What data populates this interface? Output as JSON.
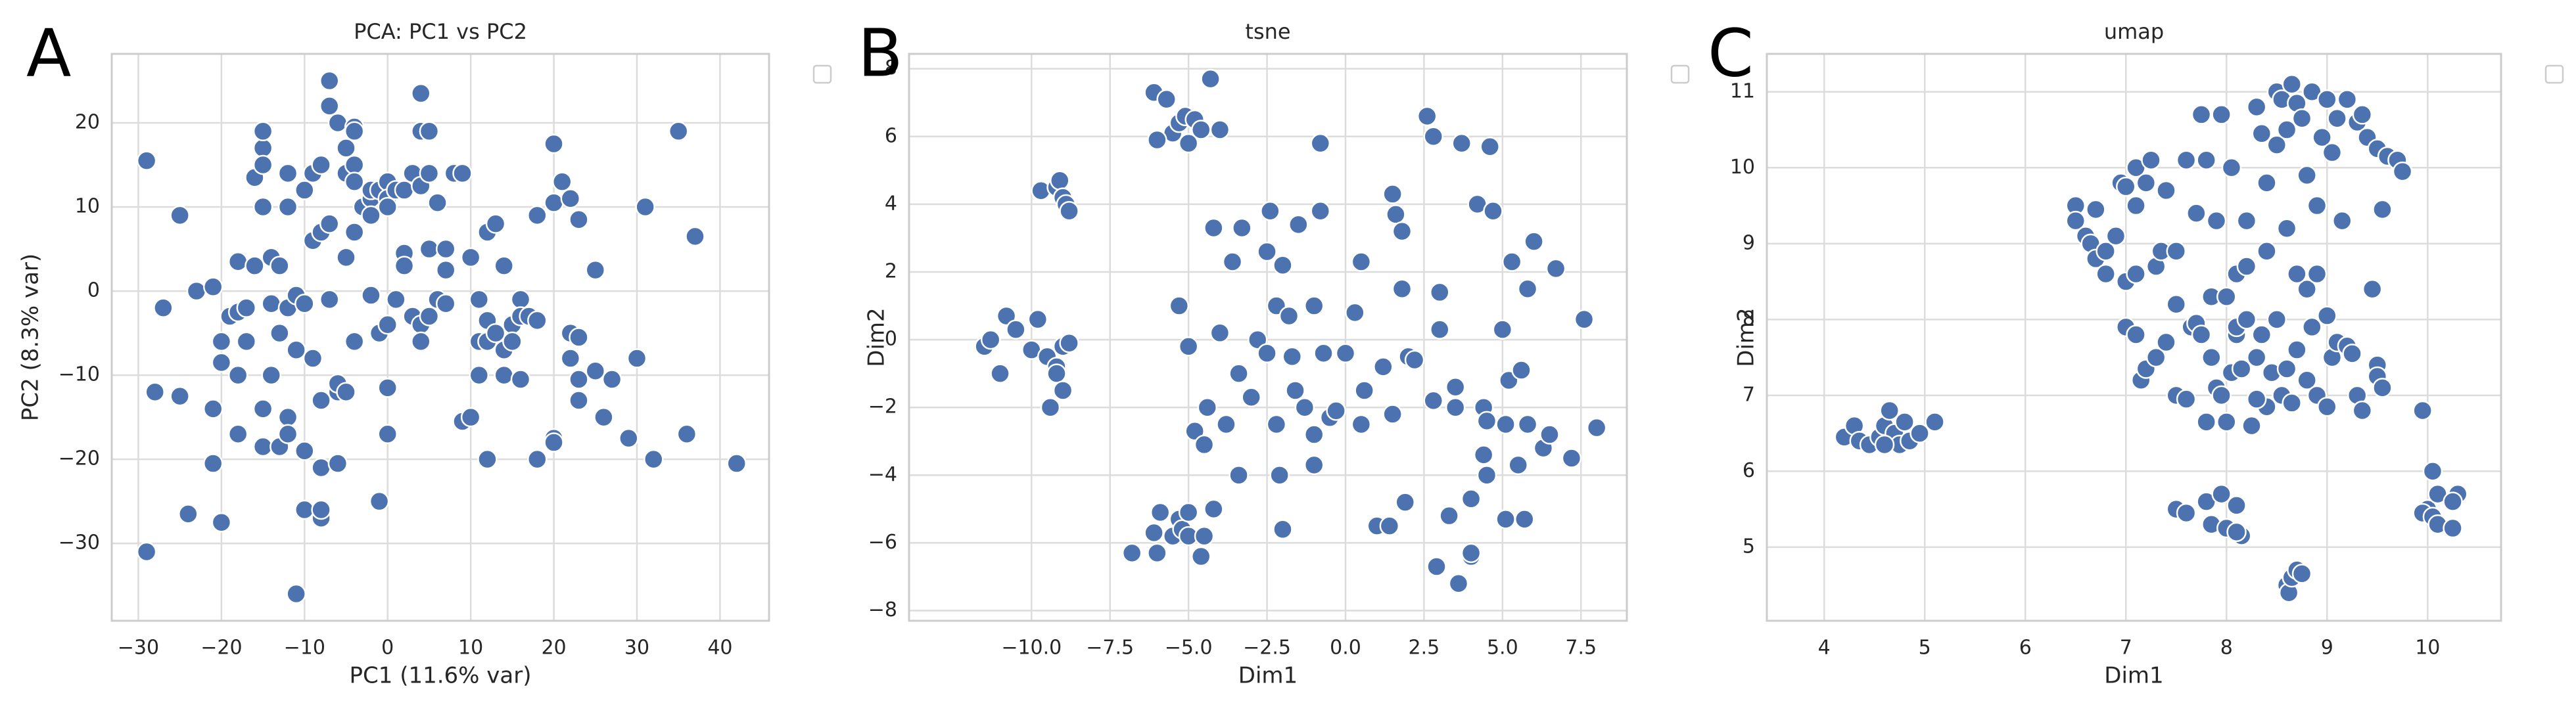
{
  "chart_data": [
    {
      "type": "scatter",
      "panel": "A",
      "title": "PCA: PC1 vs PC2",
      "xlabel": "PC1 (11.6% var)",
      "ylabel": "PC2 (8.3% var)",
      "color": "#4c72b0",
      "grid": true,
      "xlim": [
        -33.2,
        45.9
      ],
      "ylim": [
        -39.2,
        28.2
      ],
      "xticks": [
        {
          "value": -30,
          "label": "−30"
        },
        {
          "value": -20,
          "label": "−20"
        },
        {
          "value": -10,
          "label": "−10"
        },
        0,
        10,
        20,
        30,
        40
      ],
      "yticks": [
        {
          "value": -30,
          "label": "−30"
        },
        {
          "value": -20,
          "label": "−20"
        },
        {
          "value": -10,
          "label": "−10"
        },
        0,
        10,
        20
      ],
      "x": [
        -29,
        -29,
        -28,
        -27,
        -25,
        -25,
        -24,
        -23,
        -21,
        -21,
        -21,
        -20,
        -20,
        -20,
        -19,
        -18,
        -18,
        -18,
        -18,
        -17,
        -17,
        -16,
        -16,
        -15,
        -15,
        -15,
        -15,
        -15,
        -15,
        -14,
        -14,
        -14,
        -13,
        -13,
        -13,
        -12,
        -12,
        -12,
        -12,
        -12,
        -11,
        -11,
        -11,
        -10,
        -10,
        -10,
        -10,
        -9,
        -9,
        -9,
        -8,
        -8,
        -8,
        -8,
        -8,
        -8,
        -7,
        -7,
        -7,
        -7,
        -6,
        -6,
        -6,
        -6,
        -5,
        -5,
        -5,
        -5,
        -4,
        -4,
        -4,
        -4,
        -4,
        -4,
        -3,
        -2,
        -2,
        -2,
        -2,
        -1,
        -1,
        -1,
        0,
        0,
        0,
        0,
        0,
        0,
        1,
        1,
        2,
        2,
        2,
        3,
        3,
        4,
        4,
        4,
        4,
        4,
        5,
        5,
        5,
        5,
        6,
        6,
        7,
        7,
        7,
        8,
        9,
        9,
        10,
        10,
        11,
        11,
        11,
        12,
        12,
        12,
        12,
        13,
        13,
        14,
        14,
        14,
        15,
        15,
        16,
        16,
        16,
        17,
        18,
        18,
        18,
        20,
        20,
        20,
        20,
        21,
        22,
        22,
        22,
        23,
        23,
        23,
        23,
        25,
        25,
        26,
        27,
        29,
        30,
        31,
        32,
        35,
        36,
        37,
        42
      ],
      "values": [
        15.5,
        -31,
        -12,
        -2,
        9,
        -12.5,
        -26.5,
        0,
        0.5,
        -14,
        -20.5,
        -6,
        -8.5,
        -27.5,
        -3,
        3.5,
        -2.5,
        -10,
        -17,
        -2,
        -6,
        3,
        13.5,
        17,
        19,
        15,
        10,
        -14,
        -18.5,
        4,
        -1.5,
        -10,
        -5,
        3,
        -18.5,
        -15,
        -17,
        14,
        10,
        -2,
        -0.5,
        -7,
        -36,
        -26,
        -1.5,
        -19,
        12,
        14,
        6,
        -8,
        -27,
        -26,
        -21,
        -13,
        7,
        15,
        25,
        22,
        8,
        -1,
        20,
        -12,
        -11,
        -20.5,
        17,
        14,
        4,
        -12,
        19.5,
        19,
        15,
        13,
        7,
        -6,
        10,
        11,
        12,
        9,
        -0.5,
        12,
        -25,
        -5,
        -4,
        -11.5,
        -17,
        13,
        11,
        10,
        12,
        -1,
        12,
        4.5,
        3,
        14,
        -3,
        12.5,
        19,
        23.5,
        -4,
        -6,
        19,
        14,
        5,
        -3,
        10.5,
        -1,
        5,
        2.5,
        -1.5,
        14,
        14,
        -15.5,
        4,
        -15,
        -6,
        -1,
        -10,
        7,
        -20,
        -3.5,
        -6,
        -5,
        8,
        3,
        -7,
        -10,
        -4,
        -6,
        -1,
        -10.5,
        -3,
        -3,
        9,
        -3.5,
        -20,
        17.5,
        -17.5,
        -18,
        10.5,
        13,
        11,
        -5,
        -8,
        8.5,
        -10.5,
        -13,
        -5.5,
        2.5,
        -9.5,
        -15,
        -10.5,
        -17.5,
        -8,
        10,
        -20,
        19,
        -17,
        6.5,
        -20.5
      ]
    },
    {
      "type": "scatter",
      "panel": "B",
      "title": "tsne",
      "xlabel": "Dim1",
      "ylabel": "Dim2",
      "color": "#4c72b0",
      "grid": true,
      "xlim": [
        -13.9,
        8.96
      ],
      "ylim": [
        -8.3,
        8.44
      ],
      "xticks": [
        {
          "value": -10,
          "label": "−10.0"
        },
        {
          "value": -7.5,
          "label": "−7.5"
        },
        {
          "value": -5,
          "label": "−5.0"
        },
        {
          "value": -2.5,
          "label": "−2.5"
        },
        {
          "value": 0,
          "label": "0.0"
        },
        2.5,
        {
          "value": 5,
          "label": "5.0"
        },
        7.5
      ],
      "yticks": [
        {
          "value": -8,
          "label": "−8"
        },
        {
          "value": -6,
          "label": "−6"
        },
        {
          "value": -4,
          "label": "−4"
        },
        {
          "value": -2,
          "label": "−2"
        },
        0,
        2,
        4,
        6,
        8
      ],
      "x": [
        -11.5,
        -11.3,
        -11,
        -10.8,
        -10.5,
        -10,
        -9.8,
        -9.5,
        -9.4,
        -9.2,
        -9.2,
        -9,
        -9,
        -8.8,
        -9.7,
        -9.2,
        -9.1,
        -9,
        -8.9,
        -8.8,
        -6.8,
        -6.1,
        -6,
        -5.9,
        -5.5,
        -5.3,
        -5.2,
        -5,
        -5,
        -4.6,
        -4.5,
        -4.4,
        -4.2,
        -6.1,
        -5.7,
        -5.5,
        -5.3,
        -5.1,
        -5,
        -4.8,
        -4.6,
        -4.3,
        -4,
        -6,
        -5.3,
        -5,
        -4.8,
        -4.5,
        -4.2,
        -4,
        -3.8,
        -3.6,
        -3.4,
        -3.4,
        -3.3,
        -3,
        -2.8,
        -2.5,
        -2.5,
        -2.4,
        -2.2,
        -2.2,
        -2.1,
        -2,
        -2,
        -1.8,
        -1.7,
        -1.6,
        -1.5,
        -1.3,
        -1,
        -1,
        -1,
        -0.8,
        -0.7,
        -0.5,
        -0.3,
        0,
        0.3,
        0.5,
        0.5,
        -0.8,
        0.6,
        1,
        1.2,
        1.4,
        1.5,
        1.5,
        1.6,
        1.8,
        1.8,
        1.9,
        2,
        2.2,
        2.6,
        2.8,
        2.8,
        2.9,
        3,
        3,
        3.3,
        3.5,
        3.5,
        3.6,
        3.7,
        4,
        4,
        4,
        4.2,
        4.4,
        4.4,
        4.5,
        4.5,
        4.6,
        4.7,
        5,
        5.1,
        5.1,
        5.2,
        5.3,
        5.5,
        5.6,
        5.8,
        6,
        6.3,
        6.5,
        6.7,
        7.2,
        7.6,
        8,
        5.7,
        5.8
      ],
      "values": [
        -0.2,
        0,
        -1,
        0.7,
        0.3,
        -0.3,
        0.6,
        -0.5,
        -2,
        -0.8,
        -1,
        -1.5,
        -0.2,
        -0.1,
        4.4,
        4.5,
        4.7,
        4.2,
        4,
        3.8,
        -6.3,
        -5.7,
        -6.3,
        -5.1,
        -5.8,
        -5.3,
        -5.6,
        -5.1,
        -5.8,
        -6.4,
        -5.8,
        -2,
        -5,
        7.3,
        7.1,
        6.1,
        6.4,
        6.6,
        5.8,
        6.5,
        6.2,
        7.7,
        6.2,
        5.9,
        1,
        -0.2,
        -2.7,
        -3.1,
        3.3,
        0.2,
        -2.5,
        2.3,
        -1,
        -4,
        3.3,
        -1.7,
        0,
        2.6,
        -0.4,
        3.8,
        1,
        -2.5,
        -4,
        -5.6,
        2.2,
        0.7,
        -0.5,
        -1.5,
        3.4,
        -2,
        1,
        -2.8,
        -3.7,
        3.8,
        -0.4,
        -2.3,
        -2.1,
        -0.4,
        0.8,
        2.3,
        -2.5,
        5.8,
        -1.5,
        -5.5,
        -0.8,
        -5.5,
        4.3,
        -2.2,
        3.7,
        1.5,
        3.2,
        -4.8,
        -0.5,
        -0.6,
        6.6,
        6,
        -1.8,
        -6.7,
        0.3,
        1.4,
        -5.2,
        -1.4,
        -2,
        -7.2,
        5.8,
        -6.4,
        -4.7,
        -6.3,
        4,
        -2,
        -3.4,
        -4,
        -2.4,
        5.7,
        3.8,
        0.3,
        -2.5,
        -5.3,
        -1.2,
        2.3,
        -3.7,
        -0.9,
        -2.5,
        2.9,
        -3.2,
        -2.8,
        2.1,
        -3.5,
        0.6,
        -2.6,
        -5.3,
        1.5
      ]
    },
    {
      "type": "scatter",
      "panel": "C",
      "title": "umap",
      "xlabel": "Dim1",
      "ylabel": "Dim2",
      "color": "#4c72b0",
      "grid": true,
      "xlim": [
        3.43,
        10.73
      ],
      "ylim": [
        4.03,
        11.5
      ],
      "xticks": [
        4,
        5,
        6,
        7,
        8,
        9,
        10
      ],
      "yticks": [
        5,
        6,
        7,
        8,
        9,
        10,
        11
      ],
      "x": [
        4.2,
        4.3,
        4.35,
        4.45,
        4.55,
        4.6,
        4.65,
        4.7,
        4.75,
        4.8,
        4.85,
        4.95,
        5.1,
        4.6,
        7.5,
        7.6,
        7.8,
        7.85,
        7.95,
        8,
        8.1,
        8.15,
        8.1,
        8.6,
        8.62,
        8.65,
        8.7,
        8.75,
        9.95,
        10.05,
        10,
        9.95,
        10.05,
        10.1,
        10.1,
        10.25,
        10.3,
        10.25,
        6.5,
        6.5,
        6.6,
        6.65,
        6.7,
        6.7,
        6.8,
        6.8,
        6.9,
        6.95,
        7,
        7,
        7.1,
        7.1,
        7.1,
        7.2,
        7.25,
        7.3,
        7.35,
        7.4,
        7.5,
        7.5,
        7.6,
        7.65,
        7.7,
        7.75,
        7.8,
        7.9,
        7.85,
        7.95,
        8.05,
        8.1,
        8.1,
        8.2,
        8.3,
        8.35,
        8.4,
        8.4,
        8.5,
        8.5,
        8.55,
        8.6,
        8.6,
        8.65,
        8.7,
        8.75,
        8.8,
        8.8,
        8.85,
        8.9,
        8.9,
        8.95,
        9,
        9.05,
        9.1,
        9.15,
        9.2,
        9.3,
        9.35,
        9.4,
        9.45,
        9.5,
        9.55,
        9.6,
        9.7,
        9.75,
        7,
        7.1,
        7.15,
        7.2,
        7.3,
        7.4,
        7.5,
        7.6,
        7.7,
        7.75,
        7.8,
        7.85,
        7.9,
        7.95,
        8,
        8.05,
        8.1,
        8.15,
        8.2,
        8.25,
        8.3,
        8.35,
        8.4,
        8.45,
        8.5,
        8.55,
        8.6,
        8.65,
        8.7,
        8.8,
        8.85,
        8.9,
        9,
        9,
        9.05,
        9.1,
        9.2,
        9.25,
        9.3,
        9.35,
        9.5,
        9.5,
        9.55,
        8,
        8.7,
        8.2,
        8.3
      ],
      "values": [
        6.45,
        6.6,
        6.4,
        6.35,
        6.45,
        6.6,
        6.8,
        6.5,
        6.35,
        6.65,
        6.4,
        6.5,
        6.65,
        6.35,
        5.5,
        5.45,
        5.6,
        5.3,
        5.7,
        5.25,
        5.55,
        5.15,
        5.2,
        4.5,
        4.4,
        4.6,
        4.7,
        4.65,
        6.8,
        6,
        5.5,
        5.45,
        5.4,
        5.3,
        5.7,
        5.25,
        5.7,
        5.6,
        9.5,
        9.3,
        9.1,
        9,
        9.45,
        8.8,
        8.6,
        8.9,
        9.1,
        9.8,
        9.75,
        8.5,
        8.6,
        9.5,
        10,
        9.8,
        10.1,
        8.7,
        8.9,
        9.7,
        8.2,
        8.9,
        10.1,
        7.9,
        9.4,
        10.7,
        10.1,
        9.3,
        8.3,
        10.7,
        10,
        7.8,
        8.6,
        8.7,
        10.8,
        10.45,
        9.8,
        8.9,
        10.3,
        11,
        10.9,
        10.5,
        9.2,
        11.1,
        10.85,
        10.65,
        8.4,
        9.9,
        11,
        9.5,
        8.6,
        10.4,
        10.9,
        10.2,
        10.65,
        9.3,
        10.9,
        10.6,
        10.7,
        10.4,
        8.4,
        10.25,
        9.45,
        10.15,
        10.1,
        9.95,
        7.9,
        7.8,
        7.2,
        7.35,
        7.5,
        7.7,
        7,
        6.95,
        7.95,
        7.8,
        6.65,
        7.5,
        7.1,
        7,
        6.65,
        7.3,
        7.9,
        7.35,
        8,
        6.6,
        7.5,
        7.8,
        6.85,
        7.3,
        8,
        7,
        7.35,
        6.9,
        7.6,
        7.2,
        7.9,
        7,
        6.85,
        8.05,
        7.5,
        7.7,
        7.65,
        7.55,
        7,
        6.8,
        7.4,
        7.25,
        7.1,
        8.3,
        8.6,
        9.3,
        6.95
      ]
    }
  ]
}
